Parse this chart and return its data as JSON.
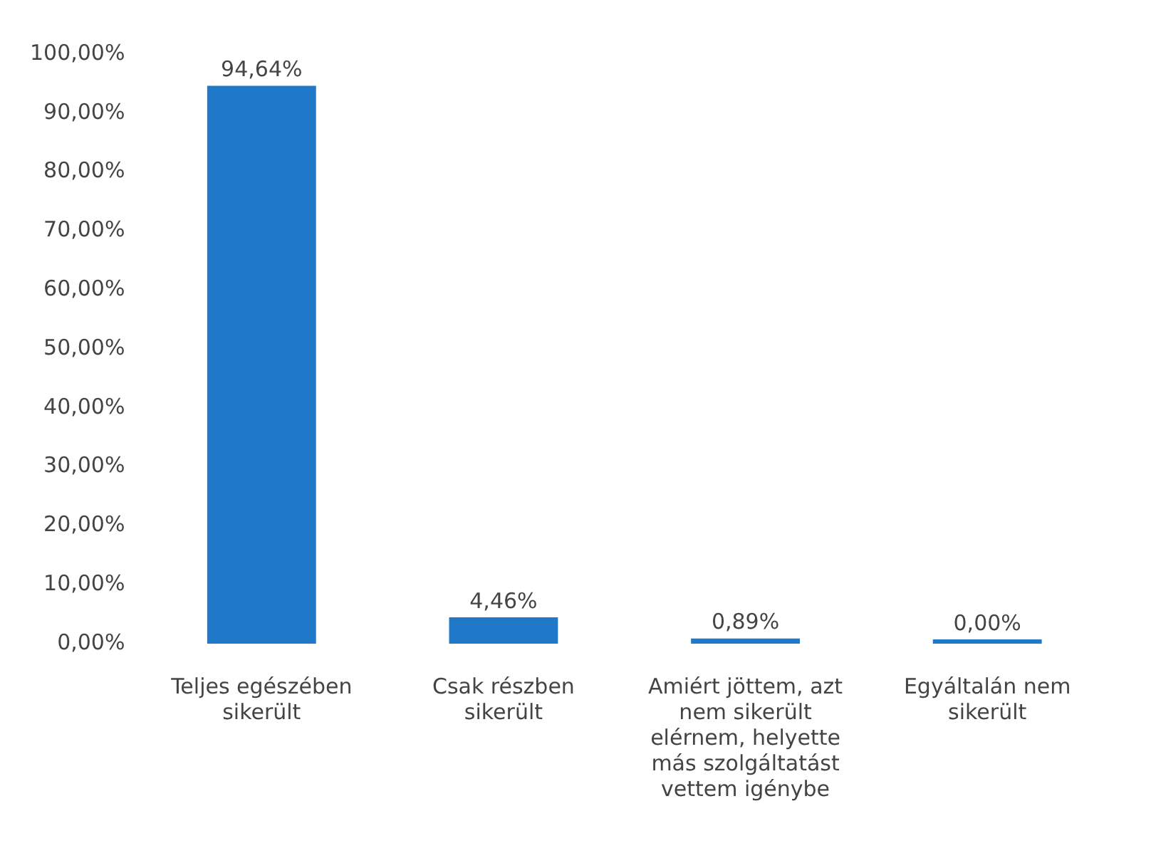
{
  "chart_data": {
    "type": "bar",
    "categories": [
      "Teljes egészében sikerült",
      "Csak részben sikerült",
      "Amiért jöttem, azt nem sikerült elérnem, helyette más szolgáltatást vettem igénybe",
      "Egyáltalán nem sikerült"
    ],
    "values": [
      94.64,
      4.46,
      0.89,
      0.0
    ],
    "value_labels": [
      "94,64%",
      "4,46%",
      "0,89%",
      "0,00%"
    ],
    "color": "#1f78c8",
    "ylim": [
      0,
      100
    ],
    "yticks": [
      {
        "value": 0,
        "label": "0,00%"
      },
      {
        "value": 10,
        "label": "10,00%"
      },
      {
        "value": 20,
        "label": "20,00%"
      },
      {
        "value": 30,
        "label": "30,00%"
      },
      {
        "value": 40,
        "label": "40,00%"
      },
      {
        "value": 50,
        "label": "50,00%"
      },
      {
        "value": 60,
        "label": "60,00%"
      },
      {
        "value": 70,
        "label": "70,00%"
      },
      {
        "value": 80,
        "label": "80,00%"
      },
      {
        "value": 90,
        "label": "90,00%"
      },
      {
        "value": 100,
        "label": "100,00%"
      }
    ],
    "grid": false,
    "legend": false
  }
}
